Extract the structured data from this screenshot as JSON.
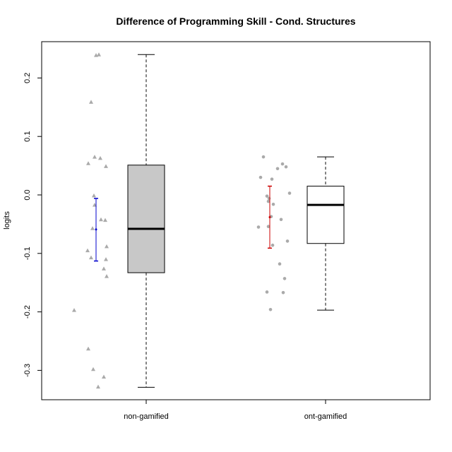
{
  "chart_data": {
    "type": "boxplot",
    "title": "Difference of Programming Skill - Cond. Structures",
    "xlabel": "",
    "ylabel": "logits",
    "ylim": [
      -0.35,
      0.25
    ],
    "yticks": [
      {
        "value": -0.3,
        "label": "-0.3"
      },
      {
        "value": -0.2,
        "label": "-0.2"
      },
      {
        "value": -0.1,
        "label": "-0.1"
      },
      {
        "value": 0.0,
        "label": "0.0"
      },
      {
        "value": 0.1,
        "label": "0.1"
      },
      {
        "value": 0.2,
        "label": "0.2"
      }
    ],
    "grid": false,
    "categories": [
      "non-gamified",
      "ont-gamified"
    ],
    "colors": {
      "box_fill_0": "#c8c8c8",
      "box_fill_1": "#ffffff",
      "points_0": "#aaaaaa",
      "points_1": "#aaaaaa",
      "ci_0": "#0000cc",
      "ci_1": "#cc0000"
    },
    "groups": [
      {
        "category": "non-gamified",
        "box": {
          "min": -0.329,
          "q1": -0.133,
          "median": -0.058,
          "q3": 0.051,
          "max": 0.24
        },
        "mean_ci": {
          "mean": -0.059,
          "lower": -0.113,
          "upper": -0.006
        },
        "point_marker": "triangle",
        "points": [
          0.239,
          0.24,
          0.159,
          0.065,
          0.063,
          0.054,
          0.049,
          -0.001,
          -0.017,
          -0.042,
          -0.043,
          -0.057,
          -0.088,
          -0.095,
          -0.107,
          -0.11,
          -0.126,
          -0.139,
          -0.197,
          -0.263,
          -0.298,
          -0.311,
          -0.328
        ]
      },
      {
        "category": "ont-gamified",
        "box": {
          "min": -0.197,
          "q1": -0.083,
          "median": -0.017,
          "q3": 0.015,
          "max": 0.065
        },
        "mean_ci": {
          "mean": -0.038,
          "lower": -0.091,
          "upper": 0.015
        },
        "point_marker": "circle",
        "points": [
          0.065,
          0.053,
          0.048,
          0.045,
          0.03,
          0.027,
          0.003,
          -0.002,
          -0.006,
          -0.011,
          -0.016,
          -0.037,
          -0.042,
          -0.054,
          -0.055,
          -0.079,
          -0.086,
          -0.118,
          -0.143,
          -0.166,
          -0.167,
          -0.196
        ]
      }
    ]
  }
}
